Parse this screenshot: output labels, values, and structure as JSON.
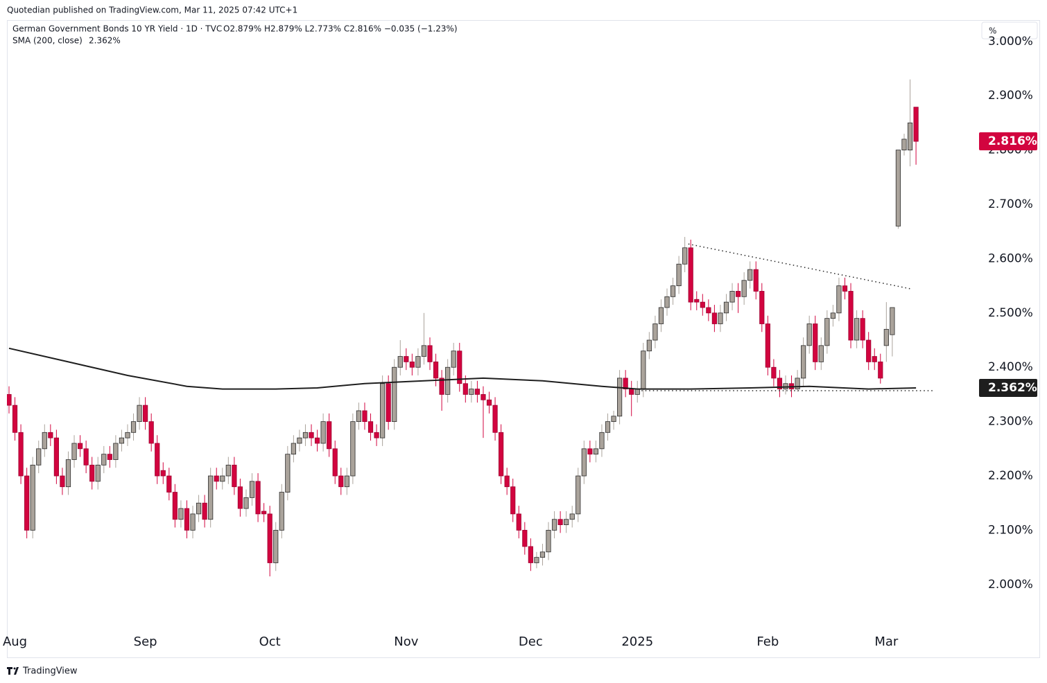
{
  "header": {
    "published": "Quotedian published on TradingView.com, Mar 11, 2025 07:42 UTC+1"
  },
  "chart_data": {
    "type": "candlestick",
    "legend": {
      "symbol": "German Government Bonds 10 YR Yield · 1D · TVC",
      "ohlc": "O2.879%  H2.879%  L2.773%  C2.816%  −0.035 (−1.23%)",
      "sma": "SMA (200, close)",
      "sma_value": "2.362%"
    },
    "unit_button": "%",
    "up_color": "#aaa39b",
    "down_color": "#d2043f",
    "sma_color": "#1e1e1e",
    "xlim": [
      -0.35,
      163.4
    ],
    "xticks": [
      {
        "value": 1,
        "label": "Aug"
      },
      {
        "value": 23,
        "label": "Sep"
      },
      {
        "value": 44,
        "label": "Oct"
      },
      {
        "value": 67,
        "label": "Nov"
      },
      {
        "value": 88,
        "label": "Dec"
      },
      {
        "value": 106,
        "label": "2025"
      },
      {
        "value": 128,
        "label": "Feb"
      },
      {
        "value": 148,
        "label": "Mar"
      }
    ],
    "ylim": [
      1.922,
      3.038
    ],
    "yticks": [
      {
        "value": 2.0,
        "label": "2.000%"
      },
      {
        "value": 2.1,
        "label": "2.100%"
      },
      {
        "value": 2.2,
        "label": "2.200%"
      },
      {
        "value": 2.3,
        "label": "2.300%"
      },
      {
        "value": 2.4,
        "label": "2.400%"
      },
      {
        "value": 2.5,
        "label": "2.500%"
      },
      {
        "value": 2.6,
        "label": "2.600%"
      },
      {
        "value": 2.7,
        "label": "2.700%"
      },
      {
        "value": 2.8,
        "label": "2.800%"
      },
      {
        "value": 2.9,
        "label": "2.900%"
      },
      {
        "value": 3.0,
        "label": "3.000%"
      }
    ],
    "candles": [
      [
        2.35,
        2.365,
        2.315,
        2.33
      ],
      [
        2.33,
        2.345,
        2.265,
        2.28
      ],
      [
        2.28,
        2.295,
        2.185,
        2.2
      ],
      [
        2.2,
        2.215,
        2.085,
        2.1
      ],
      [
        2.1,
        2.235,
        2.085,
        2.22
      ],
      [
        2.22,
        2.265,
        2.205,
        2.25
      ],
      [
        2.25,
        2.295,
        2.235,
        2.28
      ],
      [
        2.28,
        2.295,
        2.255,
        2.27
      ],
      [
        2.27,
        2.285,
        2.185,
        2.2
      ],
      [
        2.2,
        2.215,
        2.165,
        2.18
      ],
      [
        2.18,
        2.245,
        2.165,
        2.23
      ],
      [
        2.23,
        2.275,
        2.215,
        2.26
      ],
      [
        2.26,
        2.275,
        2.235,
        2.25
      ],
      [
        2.25,
        2.265,
        2.205,
        2.22
      ],
      [
        2.22,
        2.235,
        2.175,
        2.19
      ],
      [
        2.19,
        2.235,
        2.175,
        2.22
      ],
      [
        2.22,
        2.255,
        2.205,
        2.24
      ],
      [
        2.24,
        2.255,
        2.215,
        2.23
      ],
      [
        2.23,
        2.275,
        2.215,
        2.26
      ],
      [
        2.26,
        2.285,
        2.245,
        2.27
      ],
      [
        2.27,
        2.295,
        2.255,
        2.28
      ],
      [
        2.28,
        2.315,
        2.265,
        2.3
      ],
      [
        2.3,
        2.345,
        2.285,
        2.33
      ],
      [
        2.33,
        2.345,
        2.285,
        2.3
      ],
      [
        2.3,
        2.315,
        2.245,
        2.26
      ],
      [
        2.26,
        2.275,
        2.185,
        2.2
      ],
      [
        2.21,
        2.225,
        2.185,
        2.2
      ],
      [
        2.2,
        2.215,
        2.155,
        2.17
      ],
      [
        2.17,
        2.185,
        2.105,
        2.12
      ],
      [
        2.12,
        2.155,
        2.105,
        2.14
      ],
      [
        2.14,
        2.155,
        2.085,
        2.1
      ],
      [
        2.1,
        2.145,
        2.085,
        2.13
      ],
      [
        2.13,
        2.165,
        2.115,
        2.15
      ],
      [
        2.15,
        2.165,
        2.105,
        2.12
      ],
      [
        2.12,
        2.215,
        2.105,
        2.2
      ],
      [
        2.2,
        2.215,
        2.175,
        2.19
      ],
      [
        2.19,
        2.215,
        2.175,
        2.2
      ],
      [
        2.2,
        2.235,
        2.185,
        2.22
      ],
      [
        2.22,
        2.235,
        2.165,
        2.18
      ],
      [
        2.18,
        2.195,
        2.125,
        2.14
      ],
      [
        2.14,
        2.175,
        2.125,
        2.16
      ],
      [
        2.16,
        2.205,
        2.145,
        2.19
      ],
      [
        2.19,
        2.205,
        2.115,
        2.13
      ],
      [
        2.135,
        2.15,
        2.115,
        2.13
      ],
      [
        2.13,
        2.145,
        2.015,
        2.04
      ],
      [
        2.04,
        2.115,
        2.025,
        2.1
      ],
      [
        2.1,
        2.185,
        2.085,
        2.17
      ],
      [
        2.17,
        2.255,
        2.155,
        2.24
      ],
      [
        2.24,
        2.275,
        2.225,
        2.26
      ],
      [
        2.26,
        2.285,
        2.245,
        2.27
      ],
      [
        2.27,
        2.295,
        2.255,
        2.28
      ],
      [
        2.28,
        2.295,
        2.255,
        2.27
      ],
      [
        2.27,
        2.285,
        2.245,
        2.26
      ],
      [
        2.26,
        2.315,
        2.245,
        2.3
      ],
      [
        2.3,
        2.315,
        2.235,
        2.25
      ],
      [
        2.25,
        2.265,
        2.185,
        2.2
      ],
      [
        2.2,
        2.215,
        2.165,
        2.18
      ],
      [
        2.18,
        2.215,
        2.165,
        2.2
      ],
      [
        2.2,
        2.315,
        2.185,
        2.3
      ],
      [
        2.3,
        2.335,
        2.285,
        2.32
      ],
      [
        2.32,
        2.335,
        2.285,
        2.3
      ],
      [
        2.3,
        2.315,
        2.265,
        2.28
      ],
      [
        2.28,
        2.295,
        2.255,
        2.27
      ],
      [
        2.27,
        2.385,
        2.255,
        2.37
      ],
      [
        2.37,
        2.385,
        2.285,
        2.3
      ],
      [
        2.3,
        2.415,
        2.285,
        2.4
      ],
      [
        2.4,
        2.45,
        2.385,
        2.42
      ],
      [
        2.42,
        2.435,
        2.395,
        2.41
      ],
      [
        2.41,
        2.425,
        2.385,
        2.4
      ],
      [
        2.4,
        2.435,
        2.385,
        2.42
      ],
      [
        2.42,
        2.5,
        2.405,
        2.44
      ],
      [
        2.44,
        2.455,
        2.395,
        2.41
      ],
      [
        2.41,
        2.425,
        2.365,
        2.38
      ],
      [
        2.38,
        2.395,
        2.32,
        2.35
      ],
      [
        2.35,
        2.415,
        2.335,
        2.4
      ],
      [
        2.4,
        2.445,
        2.385,
        2.43
      ],
      [
        2.43,
        2.445,
        2.355,
        2.37
      ],
      [
        2.37,
        2.385,
        2.335,
        2.35
      ],
      [
        2.35,
        2.375,
        2.335,
        2.36
      ],
      [
        2.36,
        2.375,
        2.335,
        2.35
      ],
      [
        2.35,
        2.365,
        2.27,
        2.34
      ],
      [
        2.34,
        2.355,
        2.315,
        2.33
      ],
      [
        2.33,
        2.345,
        2.265,
        2.28
      ],
      [
        2.28,
        2.295,
        2.185,
        2.2
      ],
      [
        2.2,
        2.215,
        2.165,
        2.18
      ],
      [
        2.18,
        2.195,
        2.115,
        2.13
      ],
      [
        2.13,
        2.145,
        2.085,
        2.1
      ],
      [
        2.1,
        2.115,
        2.055,
        2.07
      ],
      [
        2.07,
        2.085,
        2.025,
        2.04
      ],
      [
        2.04,
        2.06,
        2.03,
        2.05
      ],
      [
        2.05,
        2.075,
        2.035,
        2.06
      ],
      [
        2.06,
        2.115,
        2.045,
        2.1
      ],
      [
        2.1,
        2.135,
        2.085,
        2.12
      ],
      [
        2.12,
        2.135,
        2.095,
        2.11
      ],
      [
        2.11,
        2.135,
        2.095,
        2.12
      ],
      [
        2.12,
        2.145,
        2.105,
        2.13
      ],
      [
        2.13,
        2.215,
        2.115,
        2.2
      ],
      [
        2.2,
        2.265,
        2.185,
        2.25
      ],
      [
        2.25,
        2.265,
        2.225,
        2.24
      ],
      [
        2.24,
        2.265,
        2.225,
        2.25
      ],
      [
        2.25,
        2.295,
        2.235,
        2.28
      ],
      [
        2.28,
        2.315,
        2.265,
        2.3
      ],
      [
        2.3,
        2.32,
        2.285,
        2.31
      ],
      [
        2.31,
        2.395,
        2.295,
        2.38
      ],
      [
        2.38,
        2.395,
        2.345,
        2.36
      ],
      [
        2.36,
        2.375,
        2.31,
        2.35
      ],
      [
        2.35,
        2.375,
        2.335,
        2.36
      ],
      [
        2.36,
        2.445,
        2.345,
        2.43
      ],
      [
        2.43,
        2.465,
        2.415,
        2.45
      ],
      [
        2.45,
        2.495,
        2.435,
        2.48
      ],
      [
        2.48,
        2.525,
        2.465,
        2.51
      ],
      [
        2.51,
        2.545,
        2.495,
        2.53
      ],
      [
        2.53,
        2.565,
        2.515,
        2.55
      ],
      [
        2.55,
        2.605,
        2.535,
        2.59
      ],
      [
        2.59,
        2.64,
        2.575,
        2.62
      ],
      [
        2.62,
        2.635,
        2.505,
        2.52
      ],
      [
        2.525,
        2.54,
        2.505,
        2.52
      ],
      [
        2.52,
        2.535,
        2.495,
        2.51
      ],
      [
        2.51,
        2.525,
        2.485,
        2.5
      ],
      [
        2.5,
        2.515,
        2.465,
        2.48
      ],
      [
        2.48,
        2.515,
        2.465,
        2.5
      ],
      [
        2.5,
        2.535,
        2.485,
        2.52
      ],
      [
        2.52,
        2.555,
        2.505,
        2.54
      ],
      [
        2.54,
        2.555,
        2.5,
        2.53
      ],
      [
        2.53,
        2.575,
        2.515,
        2.56
      ],
      [
        2.56,
        2.595,
        2.545,
        2.58
      ],
      [
        2.58,
        2.595,
        2.525,
        2.54
      ],
      [
        2.54,
        2.555,
        2.465,
        2.48
      ],
      [
        2.48,
        2.495,
        2.385,
        2.4
      ],
      [
        2.4,
        2.415,
        2.365,
        2.38
      ],
      [
        2.38,
        2.395,
        2.345,
        2.36
      ],
      [
        2.36,
        2.385,
        2.35,
        2.37
      ],
      [
        2.37,
        2.385,
        2.345,
        2.36
      ],
      [
        2.36,
        2.395,
        2.355,
        2.38
      ],
      [
        2.38,
        2.455,
        2.365,
        2.44
      ],
      [
        2.44,
        2.495,
        2.425,
        2.48
      ],
      [
        2.48,
        2.495,
        2.395,
        2.41
      ],
      [
        2.41,
        2.455,
        2.395,
        2.44
      ],
      [
        2.44,
        2.505,
        2.425,
        2.49
      ],
      [
        2.49,
        2.515,
        2.475,
        2.5
      ],
      [
        2.5,
        2.565,
        2.485,
        2.55
      ],
      [
        2.55,
        2.565,
        2.525,
        2.54
      ],
      [
        2.54,
        2.555,
        2.435,
        2.45
      ],
      [
        2.45,
        2.505,
        2.435,
        2.49
      ],
      [
        2.49,
        2.505,
        2.435,
        2.45
      ],
      [
        2.45,
        2.465,
        2.395,
        2.41
      ],
      [
        2.42,
        2.435,
        2.395,
        2.41
      ],
      [
        2.41,
        2.425,
        2.37,
        2.38
      ],
      [
        2.44,
        2.52,
        2.41,
        2.47
      ],
      [
        2.46,
        2.51,
        2.42,
        2.51
      ],
      [
        2.66,
        2.8,
        2.655,
        2.8
      ],
      [
        2.8,
        2.83,
        2.79,
        2.82
      ],
      [
        2.8,
        2.93,
        2.77,
        2.85
      ],
      [
        2.879,
        2.879,
        2.773,
        2.816
      ]
    ],
    "sma": {
      "x": [
        0,
        10,
        20,
        30,
        36,
        45,
        52,
        60,
        70,
        80,
        90,
        100,
        106,
        115,
        125,
        135,
        145,
        153
      ],
      "values": [
        2.435,
        2.41,
        2.385,
        2.365,
        2.36,
        2.36,
        2.362,
        2.37,
        2.375,
        2.38,
        2.375,
        2.365,
        2.36,
        2.36,
        2.362,
        2.365,
        2.36,
        2.362
      ]
    },
    "trendlines": [
      {
        "x": [
          114.6,
          152.3
        ],
        "values": [
          2.627,
          2.544
        ]
      },
      {
        "x": [
          106.7,
          156.1
        ],
        "values": [
          2.357,
          2.357
        ]
      }
    ],
    "last_price": {
      "value": 2.816,
      "label": "2.816%"
    },
    "sma_tag": {
      "value": 2.362,
      "label": "2.362%"
    }
  },
  "footer": {
    "brand": "TradingView"
  }
}
